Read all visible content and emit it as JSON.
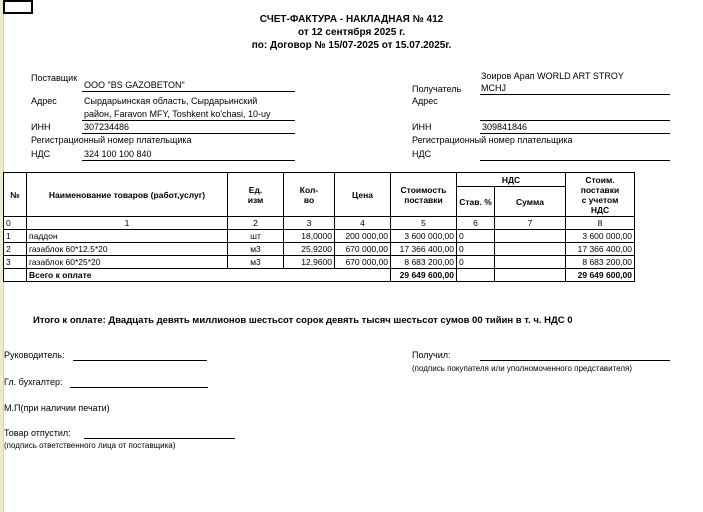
{
  "header": {
    "title": "СЧЕТ-ФАКТУРА - НАКЛАДНАЯ № 412",
    "date": "от 12 сентября 2025 г.",
    "contract": "по: Договор № 15/07-2025 от 15.07.2025г."
  },
  "supplier": {
    "label": "Поставщик",
    "name": "ООО \"BS GAZOBETON\"",
    "address_label": "Адрес",
    "address_line1": "Сырдарьинская область, Сырдарьинский",
    "address_line2": "район, Faravon MFY, Toshkent ko'chasi, 10-uy",
    "inn_label": "ИНН",
    "inn": "307234486",
    "reg_label": "Регистрационный номер плательщика",
    "vat_label": "НДС",
    "vat": "324 100 100 840"
  },
  "recipient": {
    "label": "Получатель",
    "name_line1": "Зоиров Арап WORLD ART STROY",
    "name_line2": "MCHJ",
    "address_label": "Адрес",
    "inn_label": "ИНН",
    "inn": "309841846",
    "reg_label": "Регистрационный номер плательщика",
    "vat_label": "НДС"
  },
  "table": {
    "headers": {
      "num": "№",
      "name": "Наименование товаров (работ,услуг)",
      "unit1": "Ед.",
      "unit2": "изм",
      "qty1": "Кол-",
      "qty2": "во",
      "price": "Цена",
      "cost1": "Стоимость",
      "cost2": "поставки",
      "vat": "НДС",
      "vat_rate": "Став. %",
      "vat_sum": "Сумма",
      "total1": "Стоим.",
      "total2": "поставки",
      "total3": "с учетом",
      "total4": "НДС"
    },
    "col_numbers": [
      "0",
      "1",
      "2",
      "3",
      "4",
      "5",
      "6",
      "7",
      "8"
    ],
    "rows": [
      {
        "num": "1",
        "name": "паддон",
        "unit": "шт",
        "qty": "18,0000",
        "price": "200 000,00",
        "cost": "3 600 000,00",
        "vat_rate": "0",
        "vat_sum": "",
        "total": "3 600 000,00"
      },
      {
        "num": "2",
        "name": "газаблок 60*12.5*20",
        "unit": "м3",
        "qty": "25,9200",
        "price": "670 000,00",
        "cost": "17 366 400,00",
        "vat_rate": "0",
        "vat_sum": "",
        "total": "17 366 400,00"
      },
      {
        "num": "3",
        "name": "газаблок 60*25*20",
        "unit": "м3",
        "qty": "12,9600",
        "price": "670 000,00",
        "cost": "8 683 200,00",
        "vat_rate": "0",
        "vat_sum": "",
        "total": "8 683 200,00"
      }
    ],
    "total_label": "Всего к оплате",
    "total_cost": "29 649 600,00",
    "total_sum": "29 649 600,00"
  },
  "summary": "Итого к оплате: Двадцать девять миллионов шестьсот сорок девять тысяч шестьсот сумов 00 тийин  в т. ч. НДС 0",
  "signatures": {
    "director": "Руководитель:",
    "accountant": "Гл. бухгалтер:",
    "stamp": "М.П(при наличии печати)",
    "released": "Товар  отпустил:",
    "released_note": "(подпись ответственного лица от поставщика)",
    "received": "Получил:",
    "received_note": "(подпись покупателя или уполномоченного представителя)"
  }
}
